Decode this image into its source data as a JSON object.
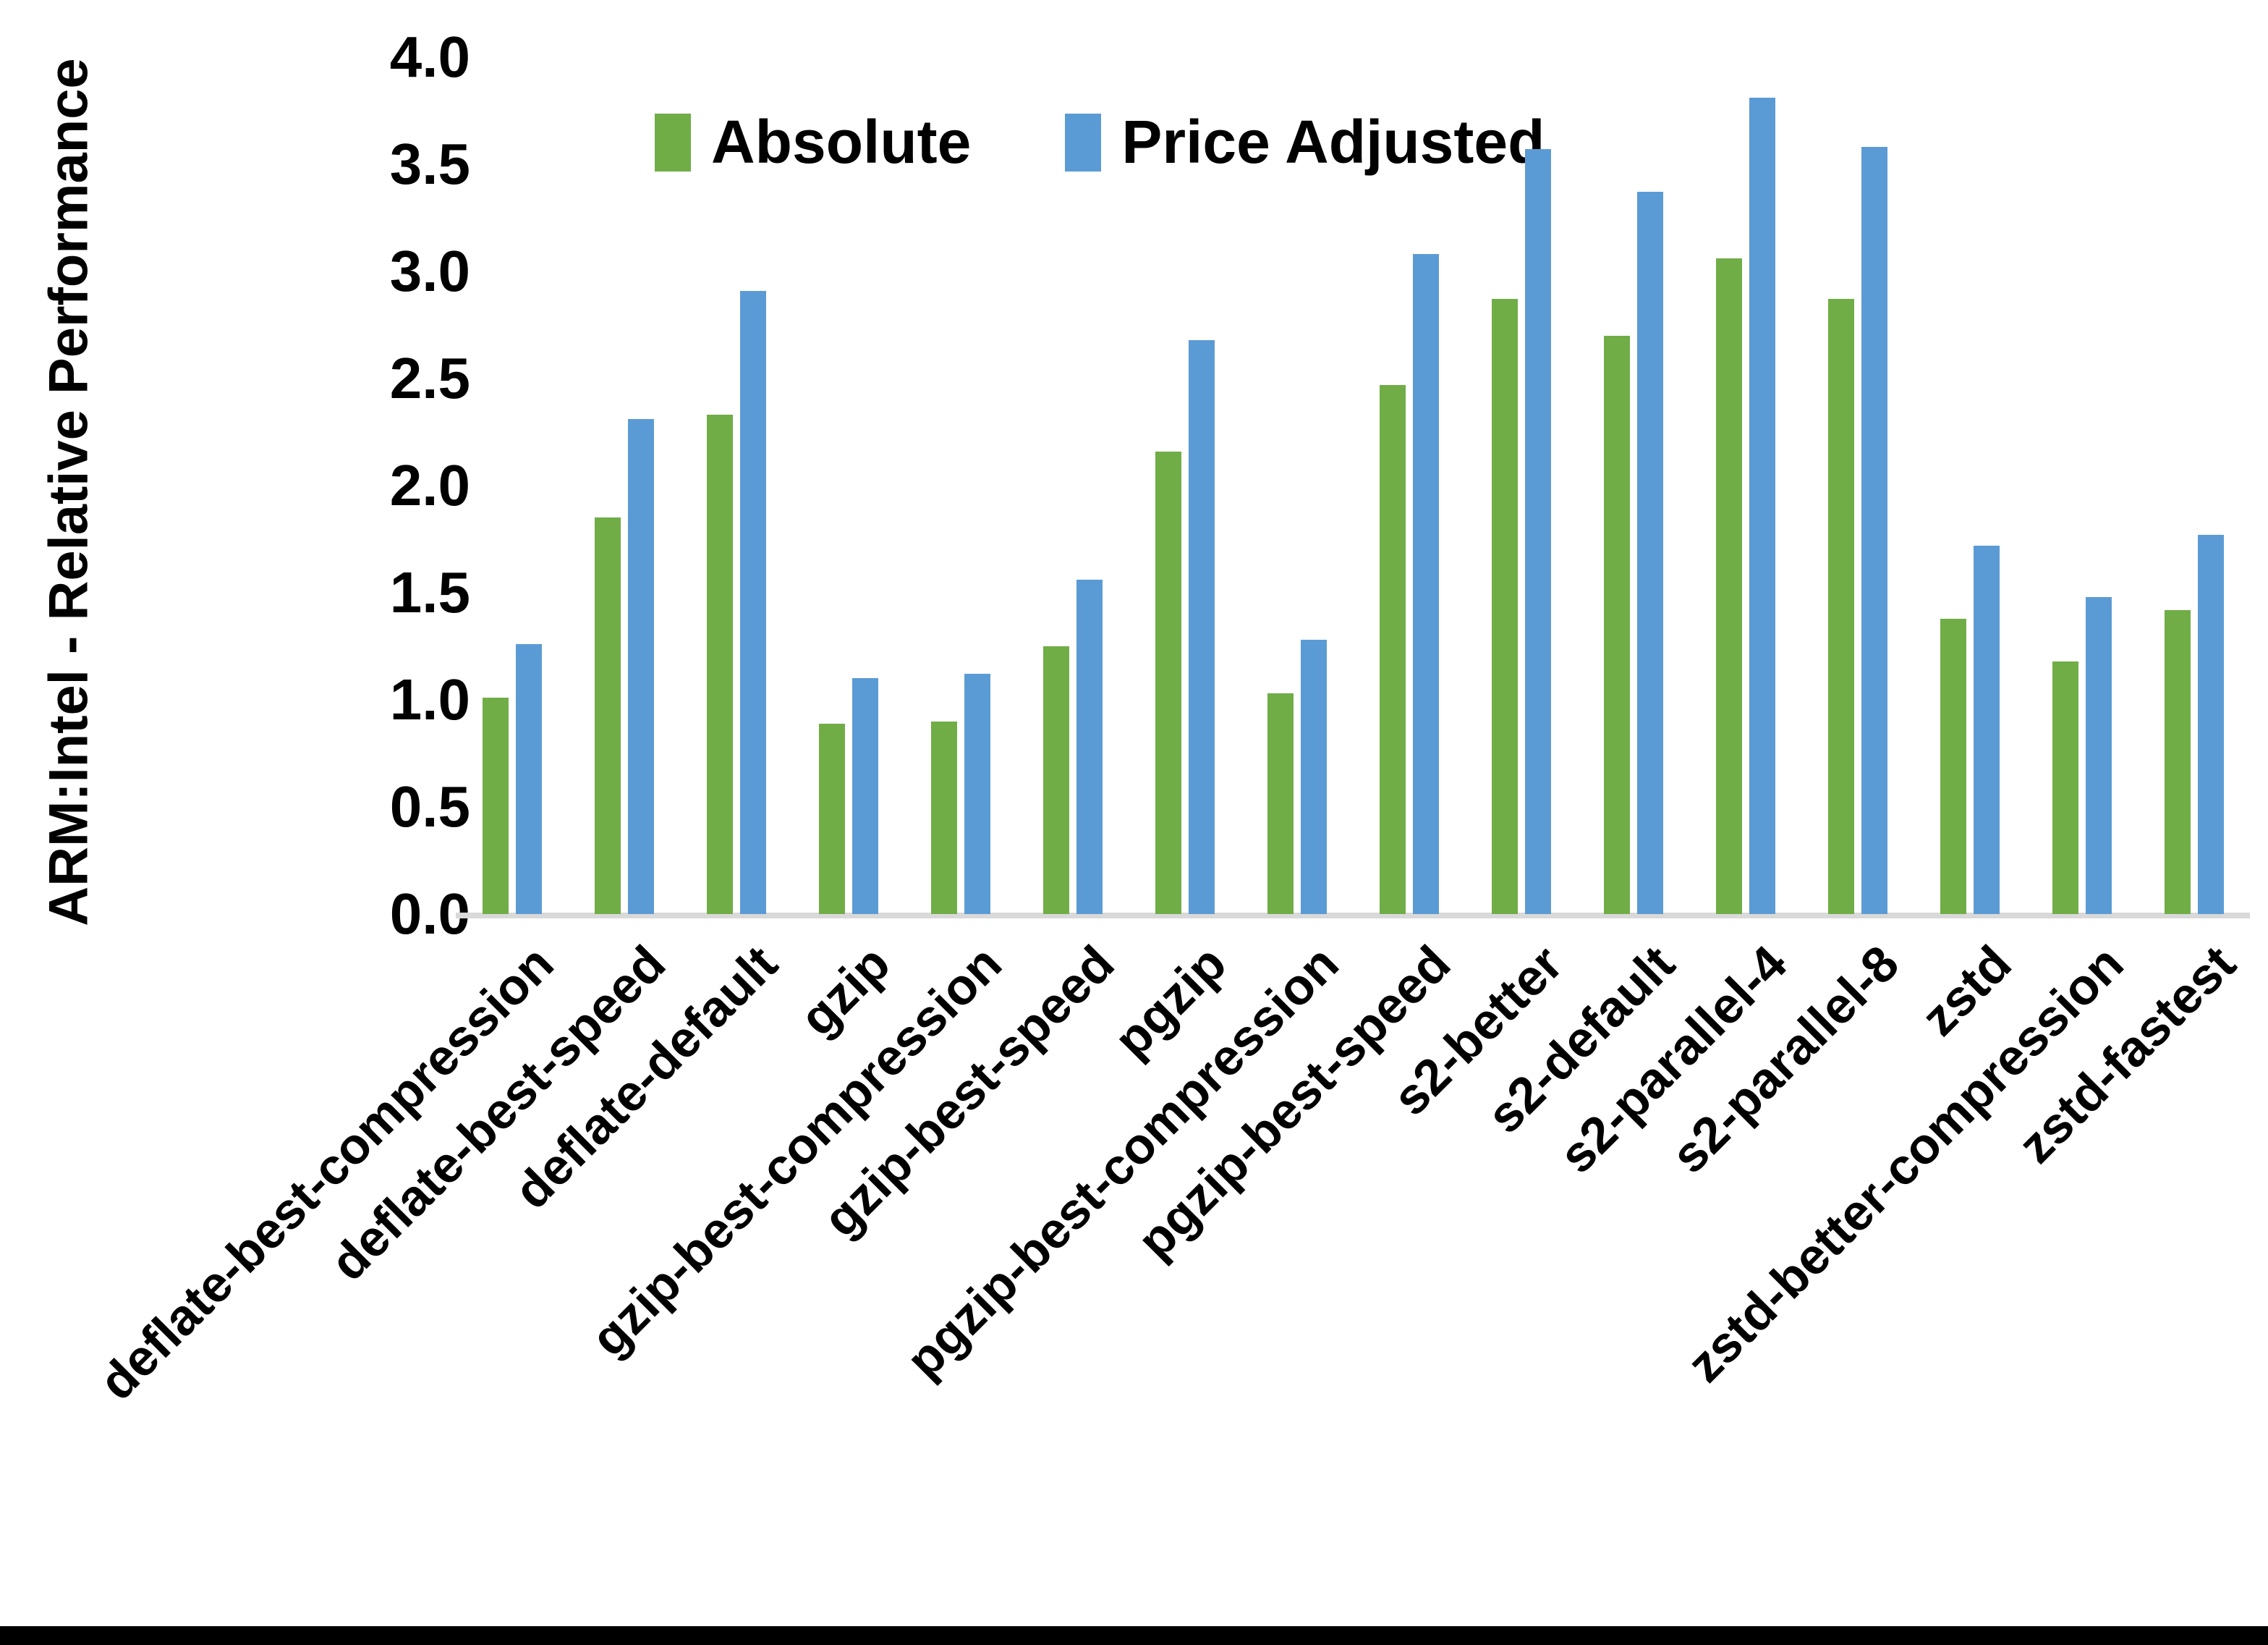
{
  "chart_data": {
    "type": "bar",
    "title": "",
    "xlabel": "",
    "ylabel": "ARM:Intel - Relative Performance",
    "ylim": [
      0.0,
      4.0
    ],
    "ytick_step": 0.5,
    "grid": false,
    "legend_position": "top-center",
    "categories": [
      "deflate-best-compression",
      "deflate-best-speed",
      "deflate-default",
      "gzip",
      "gzip-best-compression",
      "gzip-best-speed",
      "pgzip",
      "pgzip-best-compression",
      "pgzip-best-speed",
      "s2-better",
      "s2-default",
      "s2-parallel-4",
      "s2-parallel-8",
      "zstd",
      "zstd-better-compression",
      "zstd-fastest"
    ],
    "series": [
      {
        "name": "Absolute",
        "color": "#70AD47",
        "values": [
          1.01,
          1.85,
          2.33,
          0.89,
          0.9,
          1.25,
          2.16,
          1.03,
          2.47,
          2.87,
          2.7,
          3.06,
          2.87,
          1.38,
          1.18,
          1.42
        ]
      },
      {
        "name": "Price Adjusted",
        "color": "#5B9BD5",
        "values": [
          1.26,
          2.31,
          2.91,
          1.1,
          1.12,
          1.56,
          2.68,
          1.28,
          3.08,
          3.57,
          3.37,
          3.81,
          3.58,
          1.72,
          1.48,
          1.77
        ]
      }
    ]
  },
  "axis": {
    "y_tick_labels": [
      "0.0",
      "0.5",
      "1.0",
      "1.5",
      "2.0",
      "2.5",
      "3.0",
      "3.5",
      "4.0"
    ]
  },
  "colors": {
    "background": "#FFFFFF",
    "text": "#000000",
    "axis_line": "#D9D9D9",
    "bottom_border": "#000000"
  }
}
